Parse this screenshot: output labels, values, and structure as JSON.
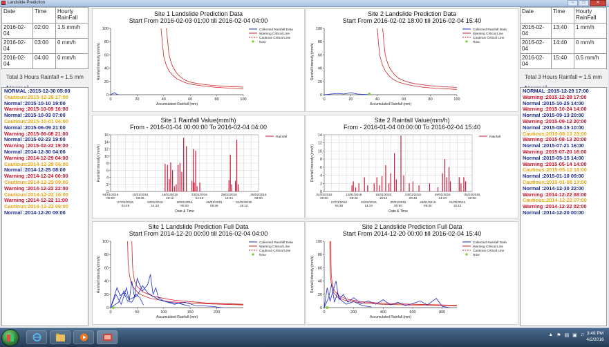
{
  "window": {
    "title": "Landslide Prediction",
    "min": "−",
    "max": "□",
    "close": "✕"
  },
  "left": {
    "headers": [
      "Date",
      "Time",
      "Hourly RainFall"
    ],
    "rows": [
      [
        "2016-02-04",
        "02:00",
        "1.5 mm/h"
      ],
      [
        "2016-02-04",
        "03:00",
        "0 mm/h"
      ],
      [
        "2016-02-04",
        "04:00",
        "0 mm/h"
      ]
    ],
    "total": "Total 3 Hours Rainfall = 1.5 mm",
    "status": "Normal",
    "history": [
      {
        "level": "normal",
        "text": "NORMAL :2015-12-30 05:00"
      },
      {
        "level": "cautious",
        "text": "Cautious:2015-12-28 17:00"
      },
      {
        "level": "normal",
        "text": "Normal :2015-10-10 19:00"
      },
      {
        "level": "warning",
        "text": "Warning :2015-10-09 16:00"
      },
      {
        "level": "normal",
        "text": "Normal :2015-10-03 07:00"
      },
      {
        "level": "cautious",
        "text": "Cautious:2015-10-01 06:00"
      },
      {
        "level": "normal",
        "text": "Normal :2015-06-09 21:00"
      },
      {
        "level": "warning",
        "text": "Warning :2015-06-08 21:00"
      },
      {
        "level": "normal",
        "text": "Normal :2015-02-23 19:00"
      },
      {
        "level": "warning",
        "text": "Warning :2015-02-22 19:00"
      },
      {
        "level": "normal",
        "text": "Normal :2014-12-30 04:00"
      },
      {
        "level": "warning",
        "text": "Warning :2014-12-29 04:00"
      },
      {
        "level": "cautious",
        "text": "Cautious:2014-12-28 06:00"
      },
      {
        "level": "normal",
        "text": "Normal :2014-12-25 08:00"
      },
      {
        "level": "warning",
        "text": "Warning :2014-12-24 00:00"
      },
      {
        "level": "cautious",
        "text": "Cautious:2014-12-23 09:00"
      },
      {
        "level": "warning",
        "text": "Warning :2014-12-22 22:00"
      },
      {
        "level": "cautious",
        "text": "Cautious:2014-12-22 16:00"
      },
      {
        "level": "warning",
        "text": "Warning :2014-12-22 11:00"
      },
      {
        "level": "cautious",
        "text": "Cautious:2014-12-22 06:00"
      },
      {
        "level": "normal",
        "text": "Normal :2014-12-20 00:00"
      }
    ]
  },
  "right": {
    "headers": [
      "Date",
      "Time",
      "Hourly RainFall"
    ],
    "rows": [
      [
        "2016-02-04",
        "13:40",
        "1 mm/h"
      ],
      [
        "2016-02-04",
        "14:40",
        "0 mm/h"
      ],
      [
        "2016-02-04",
        "15:40",
        "0.5 mm/h"
      ]
    ],
    "total": "Total 3 Hours Rainfall = 1.5 mm",
    "status": "Normal",
    "history": [
      {
        "level": "normal",
        "text": "NORMAL :2015-12-29 17:00"
      },
      {
        "level": "warning",
        "text": "Warning :2015-12-28 17:00"
      },
      {
        "level": "normal",
        "text": "Normal :2015-10-25 14:00"
      },
      {
        "level": "warning",
        "text": "Warning :2015-10-24 14:00"
      },
      {
        "level": "normal",
        "text": "Normal :2015-09-13 20:00"
      },
      {
        "level": "warning",
        "text": "Warning :2015-09-12 20:00"
      },
      {
        "level": "normal",
        "text": "Normal :2015-08-15 10:00"
      },
      {
        "level": "cautious",
        "text": "Cautious:2015-08-13 23:00"
      },
      {
        "level": "warning",
        "text": "Warning :2015-08-13 20:00"
      },
      {
        "level": "normal",
        "text": "Normal :2015-07-21 16:00"
      },
      {
        "level": "warning",
        "text": "Warning :2015-07-20 16:00"
      },
      {
        "level": "normal",
        "text": "Normal :2015-05-15 14:00"
      },
      {
        "level": "warning",
        "text": "Warning :2015-05-14 14:00"
      },
      {
        "level": "cautious",
        "text": "Cautious:2015-05-12 18:00"
      },
      {
        "level": "normal",
        "text": "Normal :2015-01-10 09:00"
      },
      {
        "level": "cautious",
        "text": "Cautious:2015-01-08 13:00"
      },
      {
        "level": "normal",
        "text": "Normal :2014-12-30 22:00"
      },
      {
        "level": "warning",
        "text": "Warning :2014-12-22 08:00"
      },
      {
        "level": "cautious",
        "text": "Cautious:2014-12-22 07:00"
      },
      {
        "level": "warning",
        "text": "Warning :2014-12-22 02:00"
      },
      {
        "level": "normal",
        "text": "Normal :2014-12-20 00:00"
      }
    ]
  },
  "charts": {
    "p1": {
      "title1": "Site 1 Landslide Prediction Data",
      "title2": "Start From 2016-02-03 01:00 till 2016-02-04 04:00"
    },
    "p2": {
      "title1": "Site 2 Landslide Prediction Data",
      "title2": "Start From 2016-02-02 18:00 till 2016-02-04 15:40"
    },
    "p3": {
      "title1": "Site 1 Rainfall Value(mm/h)",
      "title2": "From - 2016-01-04 00:00:00  To  2016-02-04 04:00"
    },
    "p4": {
      "title1": "Site 2 Rainfall Value(mm/h)",
      "title2": "From - 2016-01-04 00:00:00  To  2016-02-04 15:40"
    },
    "p5": {
      "title1": "Site 1 Landslide Prediction Full Data",
      "title2": "Start From 2014-12-20 00:00 till 2016-02-04 04:00"
    },
    "p6": {
      "title1": "Site 2 Landslide Prediction Full Data",
      "title2": "Start From 2014-12-20 00:00 till 2016-02-04 15:40"
    }
  },
  "chart_data": [
    {
      "type": "line",
      "title": "Site 1 Landslide Prediction Data",
      "xlabel": "Accumulated Rainfall (mm)",
      "ylabel": "Rainfall Intensity (mm/h)",
      "xlim": [
        0,
        100
      ],
      "ylim": [
        0,
        100
      ],
      "xticks": [
        0,
        20,
        40,
        60,
        80,
        100
      ],
      "yticks": [
        0,
        20,
        40,
        60,
        80,
        100
      ],
      "legend": [
        "Collected Rainfall Data",
        "Warning Critical Line",
        "Cautious Critical Line",
        "Now"
      ],
      "series": [
        {
          "name": "Warning Critical Line",
          "color": "#cc2222",
          "x": [
            42,
            43,
            44,
            46,
            48,
            50,
            53,
            56,
            60,
            65,
            70,
            80,
            90,
            100
          ],
          "y": [
            100,
            80,
            60,
            46,
            38,
            32,
            26,
            22,
            19,
            17,
            15.5,
            13.5,
            12.2,
            11.5
          ]
        },
        {
          "name": "Cautious Critical Line",
          "color": "#cc2222",
          "x": [
            38,
            39,
            40,
            42,
            44,
            47,
            50,
            54,
            58,
            63,
            70,
            80,
            90,
            100
          ],
          "y": [
            100,
            78,
            58,
            44,
            36,
            29,
            24,
            20,
            17,
            15,
            13,
            11,
            9.8,
            9
          ]
        },
        {
          "name": "Collected Rainfall Data",
          "color": "#1a2acc",
          "x": [
            0,
            1,
            2,
            3,
            4,
            5,
            6
          ],
          "y": [
            0,
            1,
            2,
            3,
            1.5,
            0.5,
            0
          ]
        }
      ]
    },
    {
      "type": "line",
      "title": "Site 2 Landslide Prediction Data",
      "xlabel": "Accumulated Rainfall (mm)",
      "ylabel": "Rainfall Intensity (mm/h)",
      "xlim": [
        0,
        100
      ],
      "ylim": [
        0,
        100
      ],
      "xticks": [
        0,
        20,
        40,
        60,
        80,
        100
      ],
      "yticks": [
        0,
        20,
        40,
        60,
        80,
        100
      ],
      "legend": [
        "Collected Rainfall Data",
        "Warning Critical Line",
        "Cautious Critical Line",
        "Now"
      ],
      "series": [
        {
          "name": "Warning Critical Line",
          "color": "#cc2222",
          "x": [
            44,
            45,
            46,
            48,
            50,
            53,
            56,
            60,
            65,
            70,
            80,
            90,
            100
          ],
          "y": [
            100,
            78,
            60,
            46,
            38,
            30,
            25,
            21,
            18,
            16,
            13.5,
            12,
            11
          ]
        },
        {
          "name": "Cautious Critical Line",
          "color": "#cc2222",
          "x": [
            40,
            41,
            42,
            44,
            46,
            49,
            52,
            56,
            61,
            67,
            75,
            85,
            100
          ],
          "y": [
            100,
            76,
            58,
            44,
            36,
            28,
            23,
            19,
            16,
            13.5,
            11,
            9.5,
            8
          ]
        },
        {
          "name": "Collected Rainfall Data",
          "color": "#1a2acc",
          "x": [
            0,
            5,
            10,
            15,
            20,
            25,
            30,
            35
          ],
          "y": [
            0,
            1,
            2,
            1,
            3,
            1,
            0.5,
            0
          ]
        }
      ],
      "now": {
        "x": 34,
        "y": 1
      }
    },
    {
      "type": "bar",
      "title": "Site 1 Rainfall Value(mm/h)",
      "xlabel": "Date & Time",
      "ylabel": "Rainfall Intensity (mm/h)",
      "ylim": [
        0,
        16
      ],
      "yticks": [
        0,
        2,
        4,
        6,
        8,
        10,
        12,
        14,
        16
      ],
      "xtick_labels_top": [
        "04/01/2016 00:00",
        "10/01/2016 09:36",
        "16/01/2016 19:12",
        "23/01/2016 04:48",
        "29/01/2016 14:24",
        "05/02/2016 00:00"
      ],
      "xtick_labels_bottom": [
        "07/01/2016 04:48",
        "13/01/2016 14:24",
        "20/01/2016 00:00",
        "26/01/2016 09:36",
        "01/02/2016 19:12"
      ],
      "legend": [
        "Rainfall"
      ],
      "bars_days": [
        11.8,
        12.3,
        12.7,
        13.0,
        13.4,
        13.8,
        14.2,
        14.6,
        15.0,
        15.4,
        15.8,
        16.4,
        17.6,
        17.9,
        18.1,
        18.4,
        18.7,
        19.3,
        25.6,
        25.9,
        26.2,
        27.0,
        27.3,
        27.6
      ],
      "bars_values": [
        7.8,
        7.5,
        3.5,
        8.2,
        6.0,
        1.5,
        2.0,
        7.5,
        8.0,
        5.5,
        15.2,
        12.8,
        3.0,
        12.0,
        2.5,
        11.5,
        1.5,
        2.5,
        3.2,
        10.4,
        2.0,
        3.0,
        14.6,
        2.0
      ]
    },
    {
      "type": "bar",
      "title": "Site 2 Rainfall Value(mm/h)",
      "xlabel": "Date & Time",
      "ylabel": "Rainfall Intensity (mm/h)",
      "ylim": [
        0,
        14
      ],
      "yticks": [
        0,
        2,
        4,
        6,
        8,
        10,
        12,
        14
      ],
      "xtick_labels_top": [
        "04/01/2016 00:00",
        "10/01/2016 09:36",
        "16/01/2016 19:12",
        "23/01/2016 04:48",
        "29/01/2016 14:24",
        "05/02/2016 00:00"
      ],
      "xtick_labels_bottom": [
        "07/01/2016 04:48",
        "13/01/2016 14:24",
        "20/01/2016 00:00",
        "26/01/2016 09:36",
        "01/02/2016 19:12"
      ],
      "legend": [
        "Rainfall"
      ],
      "bars_days": [
        6.0,
        6.3,
        6.8,
        7.5,
        8.7,
        9.4,
        10.8,
        11.4,
        12.0,
        12.5,
        13.3,
        14.0,
        14.4,
        15.2,
        15.6,
        16.6,
        17.2,
        18.4,
        19.2,
        20.5,
        22.8,
        24.6,
        25.6,
        26.1,
        26.5,
        27.0,
        27.3,
        29.2,
        29.6,
        30.2,
        30.6
      ],
      "bars_values": [
        1.5,
        2.5,
        1.0,
        2.0,
        3.5,
        1.5,
        2.0,
        3.5,
        1.5,
        3.8,
        6.5,
        2.0,
        4.5,
        9.5,
        3.0,
        13.8,
        4.0,
        2.0,
        2.5,
        1.5,
        2.0,
        1.0,
        4.5,
        8.0,
        3.5,
        6.0,
        2.5,
        3.5,
        2.0,
        3.5,
        2.5
      ]
    },
    {
      "type": "line",
      "title": "Site 1 Landslide Prediction Full Data",
      "xlabel": "Accumulated Rainfall (mm)",
      "ylabel": "Rainfall Intensity (mm/h)",
      "xlim": [
        0,
        250
      ],
      "ylim": [
        0,
        100
      ],
      "xticks": [
        0,
        50,
        100,
        150,
        200
      ],
      "yticks": [
        0,
        20,
        40,
        60,
        80,
        100
      ],
      "legend": [
        "Collected Rainfall Data",
        "Warning Critical Line",
        "Cautious Critical Line",
        "Now"
      ],
      "series": [
        {
          "name": "Warning Critical Line",
          "color": "#cc2222",
          "x": [
            40,
            41,
            42,
            45,
            50,
            60,
            80,
            120,
            180,
            250
          ],
          "y": [
            100,
            70,
            55,
            40,
            32,
            24,
            17,
            11,
            7,
            5
          ]
        },
        {
          "name": "Cautious Critical Line",
          "color": "#cc2222",
          "x": [
            32,
            33,
            35,
            38,
            45,
            55,
            75,
            110,
            170,
            250
          ],
          "y": [
            100,
            70,
            52,
            38,
            28,
            20,
            14,
            9,
            6,
            4
          ]
        },
        {
          "name": "Collected Rainfall Data",
          "color": "#1a2acc",
          "x": [
            0,
            10,
            20,
            30,
            35,
            40,
            45,
            50,
            60,
            70,
            75,
            80,
            85,
            90,
            100,
            120,
            140,
            160,
            190,
            210
          ],
          "y": [
            0,
            20,
            5,
            30,
            10,
            40,
            15,
            44,
            25,
            35,
            50,
            20,
            30,
            15,
            10,
            5,
            8,
            3,
            2,
            0
          ]
        },
        {
          "name": "Collected Rainfall Data (2)",
          "color": "#1a2acc",
          "x": [
            0,
            15,
            25,
            35,
            50,
            60,
            70,
            90,
            110,
            130,
            150
          ],
          "y": [
            0,
            8,
            25,
            12,
            18,
            33,
            22,
            12,
            8,
            6,
            2
          ]
        },
        {
          "name": "Collected Rainfall Data (3)",
          "color": "#1a2acc",
          "x": [
            0,
            5,
            12,
            18,
            25,
            32,
            40,
            48,
            55,
            62
          ],
          "y": [
            0,
            12,
            30,
            18,
            22,
            10,
            8,
            20,
            15,
            4
          ]
        }
      ],
      "now": {
        "x": 5,
        "y": 0
      }
    },
    {
      "type": "line",
      "title": "Site 2 Landslide Prediction Full Data",
      "xlabel": "Accumulated Rainfall (mm)",
      "ylabel": "Rainfall Intensity (mm/h)",
      "xlim": [
        0,
        900
      ],
      "ylim": [
        0,
        100
      ],
      "xticks": [
        0,
        200,
        400,
        600,
        800
      ],
      "yticks": [
        0,
        20,
        40,
        60,
        80,
        100
      ],
      "legend": [
        "Collected Rainfall Data",
        "Warning Critical Line",
        "Cautious Critical Line",
        "Now"
      ],
      "series": [
        {
          "name": "Warning Critical Line",
          "color": "#cc2222",
          "x": [
            45,
            46,
            48,
            55,
            70,
            100,
            150,
            250,
            400,
            600,
            900
          ],
          "y": [
            100,
            70,
            50,
            35,
            25,
            18,
            13,
            9,
            6.5,
            5,
            3.5
          ]
        },
        {
          "name": "Cautious Critical Line",
          "color": "#cc2222",
          "x": [
            38,
            39,
            42,
            50,
            65,
            95,
            140,
            240,
            390,
            600,
            900
          ],
          "y": [
            100,
            70,
            48,
            32,
            22,
            15,
            11,
            7.5,
            5,
            3.8,
            2.5
          ]
        },
        {
          "name": "Collected Rainfall Data",
          "color": "#1a2acc",
          "x": [
            0,
            20,
            40,
            60,
            80,
            100,
            130,
            160,
            200,
            250,
            300,
            350,
            400,
            450,
            500,
            550,
            600,
            650,
            700,
            760,
            800,
            850
          ],
          "y": [
            0,
            30,
            10,
            25,
            40,
            12,
            20,
            8,
            15,
            6,
            10,
            5,
            12,
            4,
            8,
            3,
            6,
            10,
            4,
            14,
            2,
            0
          ]
        },
        {
          "name": "Collected Rainfall Data (2)",
          "color": "#1a2acc",
          "x": [
            0,
            30,
            50,
            70,
            90,
            110,
            150,
            200,
            260,
            320
          ],
          "y": [
            0,
            15,
            35,
            8,
            22,
            12,
            5,
            9,
            3,
            1
          ]
        }
      ],
      "now": {
        "x": 20,
        "y": 0
      }
    }
  ],
  "taskbar": {
    "clock_time": "3:49 PM",
    "clock_date": "4/2/2016"
  },
  "colors": {
    "collected": "#1a2acc",
    "warning": "#cc2222",
    "cautious": "#cc2222",
    "now": "#88cc44"
  }
}
